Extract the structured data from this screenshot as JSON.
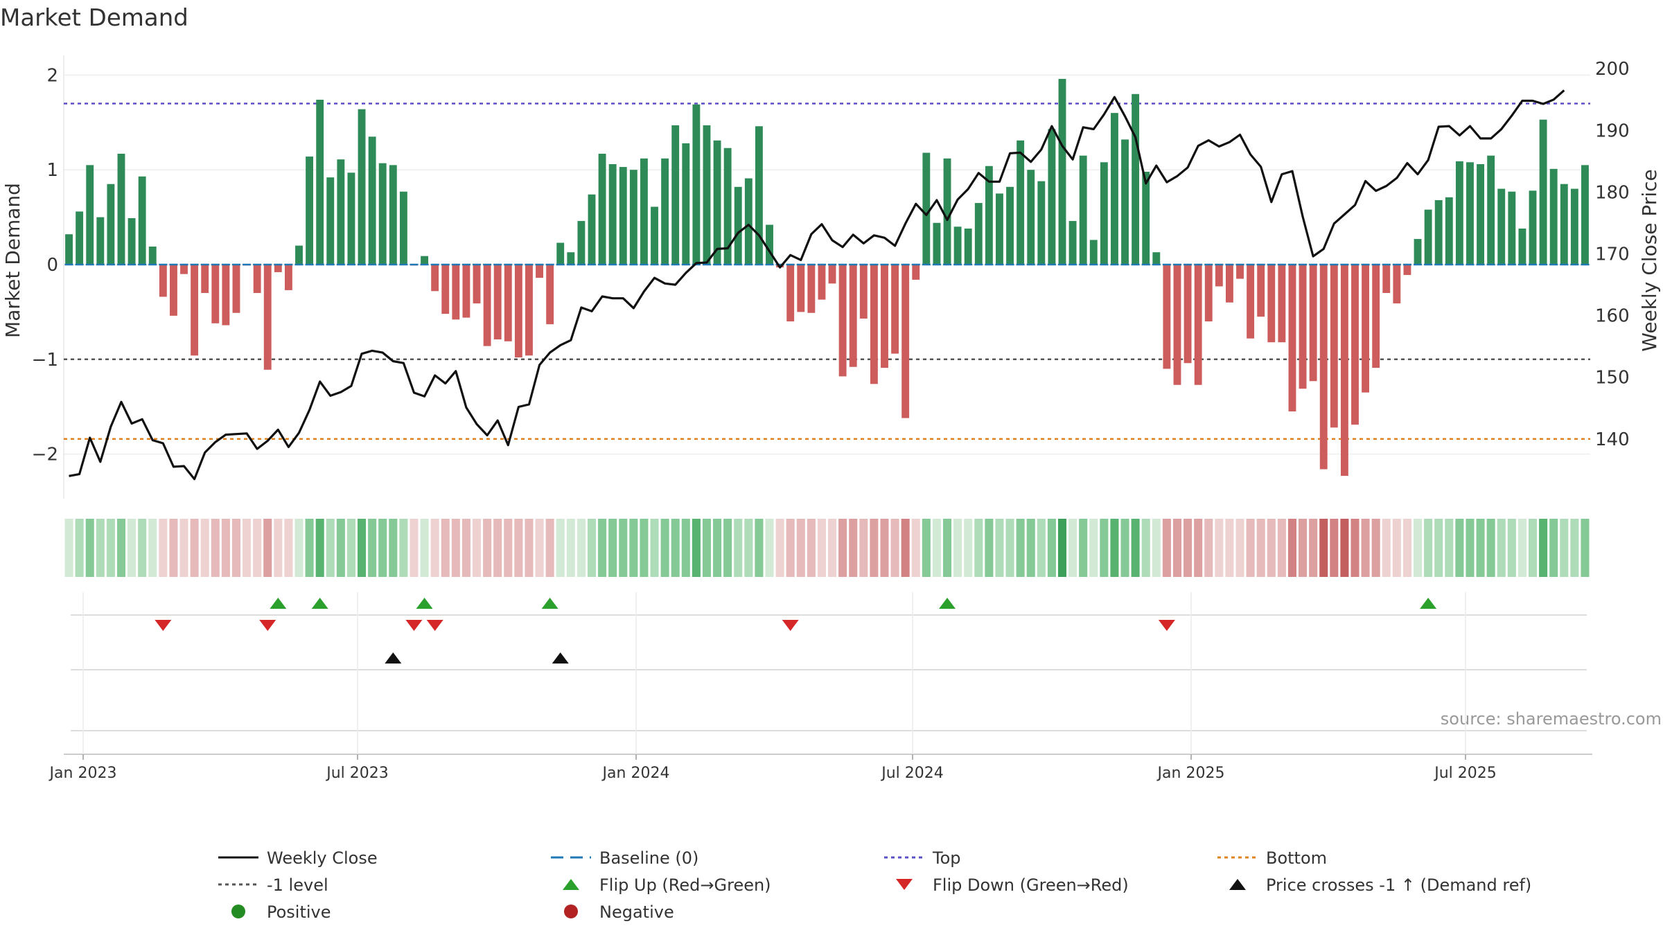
{
  "chart_data": {
    "type": "bar",
    "title": "Market Demand",
    "left_ylabel": "Market Demand",
    "right_ylabel": "Weekly Close Price",
    "left_ylim": [
      -2.5,
      2.2
    ],
    "right_ylim": [
      130,
      201
    ],
    "left_yticks": [
      2,
      1,
      0,
      -1,
      -2
    ],
    "right_yticks": [
      200,
      190,
      180,
      170,
      160,
      150,
      140
    ],
    "x_ticks": [
      "Jan 2023",
      "Jul 2023",
      "Jan 2024",
      "Jul 2024",
      "Jan 2025",
      "Jul 2025"
    ],
    "reference_lines": {
      "baseline": 0,
      "top": 1.7,
      "minus_one": -1,
      "bottom": -1.84
    },
    "series": [
      {
        "name": "Market Demand",
        "values": [
          0.32,
          0.56,
          1.05,
          0.5,
          0.85,
          1.17,
          0.49,
          0.93,
          0.19,
          -0.34,
          -0.54,
          -0.1,
          -0.96,
          -0.3,
          -0.62,
          -0.64,
          -0.51,
          -0.01,
          -0.3,
          -1.11,
          -0.08,
          -0.27,
          0.2,
          1.14,
          1.74,
          0.92,
          1.11,
          0.97,
          1.64,
          1.35,
          1.07,
          1.05,
          0.77,
          -0.01,
          0.09,
          -0.28,
          -0.52,
          -0.58,
          -0.56,
          -0.41,
          -0.86,
          -0.79,
          -0.81,
          -0.98,
          -0.96,
          -0.14,
          -0.63,
          0.23,
          0.13,
          0.46,
          0.74,
          1.17,
          1.06,
          1.03,
          1.0,
          1.12,
          0.61,
          1.12,
          1.47,
          1.28,
          1.69,
          1.47,
          1.31,
          1.23,
          0.82,
          0.91,
          1.46,
          0.42,
          -0.03,
          -0.6,
          -0.5,
          -0.51,
          -0.37,
          -0.2,
          -1.18,
          -1.08,
          -0.57,
          -1.26,
          -1.09,
          -0.94,
          -1.62,
          -0.16,
          1.18,
          0.44,
          1.12,
          0.4,
          0.38,
          0.65,
          1.04,
          0.75,
          0.82,
          1.31,
          1.0,
          0.88,
          1.43,
          1.96,
          0.46,
          1.15,
          0.26,
          1.08,
          1.6,
          1.32,
          1.8,
          0.98,
          0.13,
          -1.1,
          -1.27,
          -1.04,
          -1.27,
          -0.6,
          -0.23,
          -0.4,
          -0.15,
          -0.78,
          -0.55,
          -0.82,
          -0.82,
          -1.55,
          -1.31,
          -1.23,
          -2.16,
          -1.72,
          -2.23,
          -1.69,
          -1.35,
          -1.09,
          -0.3,
          -0.41,
          -0.11,
          0.27,
          0.58,
          0.68,
          0.71,
          1.09,
          1.08,
          1.06,
          1.15,
          0.8,
          0.77,
          0.38,
          0.78,
          1.53,
          1.01,
          0.85,
          0.8,
          1.05
        ]
      },
      {
        "name": "Weekly Close",
        "values": [
          134,
          134.3,
          140.2,
          136.3,
          142,
          146,
          142.5,
          143.2,
          139.8,
          139.3,
          135.5,
          135.6,
          133.5,
          137.8,
          139.5,
          140.7,
          140.8,
          140.9,
          138.4,
          139.7,
          141.5,
          138.7,
          141,
          144.7,
          149.3,
          147,
          147.6,
          148.6,
          153.8,
          154.3,
          154,
          152.6,
          152.3,
          147.5,
          146.9,
          150.3,
          149,
          151,
          145.1,
          142.4,
          140.6,
          143,
          139,
          145.2,
          145.6,
          152,
          154,
          155.2,
          156,
          161.3,
          160.7,
          163.1,
          162.8,
          162.8,
          161.2,
          163.9,
          166.1,
          165.2,
          165,
          166.9,
          168.5,
          168.6,
          170.8,
          170.9,
          173.4,
          174.7,
          173,
          170.4,
          167.8,
          169.8,
          169,
          173.2,
          174.8,
          172.2,
          171.1,
          173.1,
          171.7,
          173,
          172.6,
          171.3,
          174.9,
          178.1,
          176.3,
          178.7,
          175.5,
          178.8,
          180.5,
          183.1,
          181.7,
          181.7,
          186.3,
          186.4,
          184.9,
          186.9,
          190.7,
          187.5,
          185.3,
          190.5,
          190.2,
          192.6,
          195.4,
          192.3,
          188.9,
          181.4,
          184.3,
          181.6,
          182.6,
          184,
          187.5,
          188.4,
          187.4,
          188.1,
          189.3,
          186.1,
          184.1,
          178.4,
          182.9,
          183.4,
          176,
          169.6,
          170.8,
          174.9,
          176.4,
          177.9,
          181.8,
          180.2,
          181,
          182.3,
          184.7,
          182.9,
          185.2,
          190.6,
          190.7,
          189.2,
          190.7,
          188.7,
          188.7,
          190.2,
          192.4,
          194.8,
          194.8,
          194.3,
          195,
          196.5
        ]
      }
    ],
    "flip_up": [
      20,
      24,
      34,
      46,
      84,
      130
    ],
    "flip_down": [
      9,
      19,
      33,
      35,
      69,
      105
    ],
    "price_crosses": [
      31,
      47
    ],
    "source_label": "source: sharemaestro.com",
    "legend": [
      {
        "label": "Weekly Close",
        "kind": "line",
        "color": "#111111"
      },
      {
        "label": "Baseline (0)",
        "kind": "dash",
        "color": "#1f77b4"
      },
      {
        "label": "Top",
        "kind": "dot",
        "color": "#5b4fc9"
      },
      {
        "label": "Bottom",
        "kind": "dot",
        "color": "#e0831f"
      },
      {
        "label": "-1 level",
        "kind": "dot",
        "color": "#555555"
      },
      {
        "label": "Flip Up (Red→Green)",
        "kind": "tri-up",
        "color": "#2ca02c"
      },
      {
        "label": "Flip Down (Green→Red)",
        "kind": "tri-down",
        "color": "#d62728"
      },
      {
        "label": "Price crosses -1 ↑ (Demand ref)",
        "kind": "tri-up",
        "color": "#111111"
      },
      {
        "label": "Positive",
        "kind": "circle",
        "color": "#228b22"
      },
      {
        "label": "Negative",
        "kind": "circle",
        "color": "#b22222"
      }
    ],
    "colors": {
      "positive": "#2e8b57",
      "negative": "#cd5c5c",
      "price": "#111111",
      "baseline": "#1f77b4",
      "top": "#5b4fc9",
      "bottom": "#e0831f",
      "minus_one": "#555555"
    }
  }
}
